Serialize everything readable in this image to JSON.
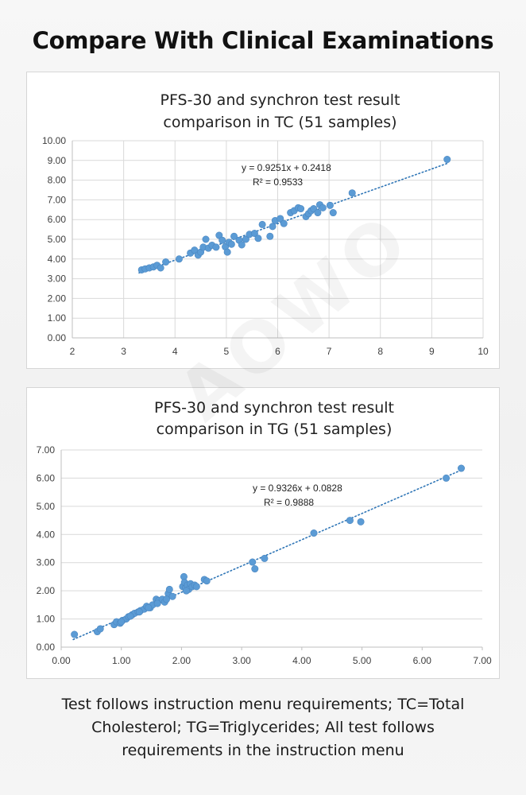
{
  "page": {
    "title": "Compare With Clinical Examinations",
    "footnote": [
      "Test follows instruction menu requirements; TC=Total",
      "Cholesterol; TG=Triglycerides; All test follows",
      "requirements in the instruction menu"
    ],
    "watermark": "AOWO"
  },
  "colors": {
    "marker": "#5b9bd5",
    "trendline": "#2e75b6",
    "grid": "#d9d9d9",
    "axis_text": "#404040"
  },
  "chart_data": [
    {
      "id": "tc",
      "type": "scatter",
      "title": [
        "PFS-30 and synchron test result",
        "comparison in TC (51 samples)"
      ],
      "xlabel": "",
      "ylabel": "",
      "xlim": [
        2,
        10
      ],
      "ylim": [
        0,
        10
      ],
      "x_ticks": [
        "2",
        "3",
        "4",
        "5",
        "6",
        "7",
        "8",
        "9",
        "10"
      ],
      "y_ticks": [
        "0.00",
        "1.00",
        "2.00",
        "3.00",
        "4.00",
        "5.00",
        "6.00",
        "7.00",
        "8.00",
        "9.00",
        "10.00"
      ],
      "grid": {
        "vertical": true,
        "horizontal": true
      },
      "trendline": {
        "style": "dotted",
        "slope": 0.9251,
        "intercept": 0.2418,
        "x_range": [
          3.3,
          9.3
        ]
      },
      "annotation": [
        "y = 0.9251x + 0.2418",
        "R² = 0.9533"
      ],
      "points": [
        [
          3.35,
          3.45
        ],
        [
          3.42,
          3.5
        ],
        [
          3.5,
          3.55
        ],
        [
          3.58,
          3.6
        ],
        [
          3.65,
          3.68
        ],
        [
          3.72,
          3.55
        ],
        [
          3.82,
          3.85
        ],
        [
          4.08,
          4.0
        ],
        [
          4.3,
          4.3
        ],
        [
          4.38,
          4.45
        ],
        [
          4.45,
          4.2
        ],
        [
          4.5,
          4.35
        ],
        [
          4.55,
          4.6
        ],
        [
          4.6,
          5.0
        ],
        [
          4.65,
          4.55
        ],
        [
          4.72,
          4.7
        ],
        [
          4.8,
          4.6
        ],
        [
          4.86,
          5.2
        ],
        [
          4.92,
          4.95
        ],
        [
          4.98,
          4.62
        ],
        [
          5.02,
          4.35
        ],
        [
          5.05,
          4.85
        ],
        [
          5.1,
          4.75
        ],
        [
          5.15,
          5.15
        ],
        [
          5.25,
          4.95
        ],
        [
          5.3,
          4.72
        ],
        [
          5.38,
          5.0
        ],
        [
          5.45,
          5.25
        ],
        [
          5.55,
          5.3
        ],
        [
          5.62,
          5.05
        ],
        [
          5.7,
          5.75
        ],
        [
          5.85,
          5.15
        ],
        [
          5.9,
          5.65
        ],
        [
          5.95,
          5.95
        ],
        [
          6.05,
          6.05
        ],
        [
          6.12,
          5.8
        ],
        [
          6.25,
          6.35
        ],
        [
          6.32,
          6.45
        ],
        [
          6.4,
          6.6
        ],
        [
          6.45,
          6.55
        ],
        [
          6.55,
          6.15
        ],
        [
          6.6,
          6.3
        ],
        [
          6.65,
          6.45
        ],
        [
          6.7,
          6.55
        ],
        [
          6.78,
          6.35
        ],
        [
          6.82,
          6.75
        ],
        [
          6.88,
          6.6
        ],
        [
          7.02,
          6.72
        ],
        [
          7.08,
          6.35
        ],
        [
          7.45,
          7.35
        ],
        [
          9.3,
          9.05
        ]
      ]
    },
    {
      "id": "tg",
      "type": "scatter",
      "title": [
        "PFS-30 and synchron test result",
        "comparison in TG (51 samples)"
      ],
      "xlabel": "",
      "ylabel": "",
      "xlim": [
        0,
        7
      ],
      "ylim": [
        0,
        7
      ],
      "x_ticks": [
        "0.00",
        "1.00",
        "2.00",
        "3.00",
        "4.00",
        "5.00",
        "6.00",
        "7.00"
      ],
      "y_ticks": [
        "0.00",
        "1.00",
        "2.00",
        "3.00",
        "4.00",
        "5.00",
        "6.00",
        "7.00"
      ],
      "grid": {
        "vertical": false,
        "horizontal": true
      },
      "trendline": {
        "style": "dotted",
        "slope": 0.9326,
        "intercept": 0.0828,
        "x_range": [
          0.2,
          6.65
        ]
      },
      "annotation": [
        "y = 0.9326x + 0.0828",
        "R² = 0.9888"
      ],
      "points": [
        [
          0.22,
          0.45
        ],
        [
          0.6,
          0.55
        ],
        [
          0.65,
          0.65
        ],
        [
          0.88,
          0.8
        ],
        [
          0.92,
          0.9
        ],
        [
          0.98,
          0.85
        ],
        [
          1.02,
          0.95
        ],
        [
          1.08,
          1.0
        ],
        [
          1.12,
          1.08
        ],
        [
          1.18,
          1.15
        ],
        [
          1.22,
          1.2
        ],
        [
          1.28,
          1.25
        ],
        [
          1.32,
          1.3
        ],
        [
          1.38,
          1.35
        ],
        [
          1.42,
          1.45
        ],
        [
          1.48,
          1.4
        ],
        [
          1.52,
          1.5
        ],
        [
          1.58,
          1.7
        ],
        [
          1.62,
          1.65
        ],
        [
          1.68,
          1.7
        ],
        [
          1.72,
          1.6
        ],
        [
          1.78,
          1.9
        ],
        [
          1.8,
          2.05
        ],
        [
          1.85,
          1.8
        ],
        [
          2.02,
          2.15
        ],
        [
          2.04,
          2.5
        ],
        [
          2.05,
          2.3
        ],
        [
          2.07,
          2.1
        ],
        [
          2.1,
          2.2
        ],
        [
          2.12,
          2.05
        ],
        [
          2.15,
          2.25
        ],
        [
          2.18,
          2.15
        ],
        [
          2.22,
          2.2
        ],
        [
          2.38,
          2.4
        ],
        [
          2.42,
          2.35
        ],
        [
          3.18,
          3.02
        ],
        [
          3.22,
          2.78
        ],
        [
          3.38,
          3.15
        ],
        [
          4.2,
          4.05
        ],
        [
          4.8,
          4.5
        ],
        [
          4.98,
          4.45
        ],
        [
          6.4,
          6.0
        ],
        [
          6.65,
          6.35
        ],
        [
          1.0,
          0.9
        ],
        [
          1.15,
          1.1
        ],
        [
          1.3,
          1.25
        ],
        [
          1.45,
          1.4
        ],
        [
          1.6,
          1.55
        ],
        [
          1.75,
          1.7
        ],
        [
          2.08,
          2.0
        ],
        [
          2.25,
          2.15
        ]
      ]
    }
  ]
}
